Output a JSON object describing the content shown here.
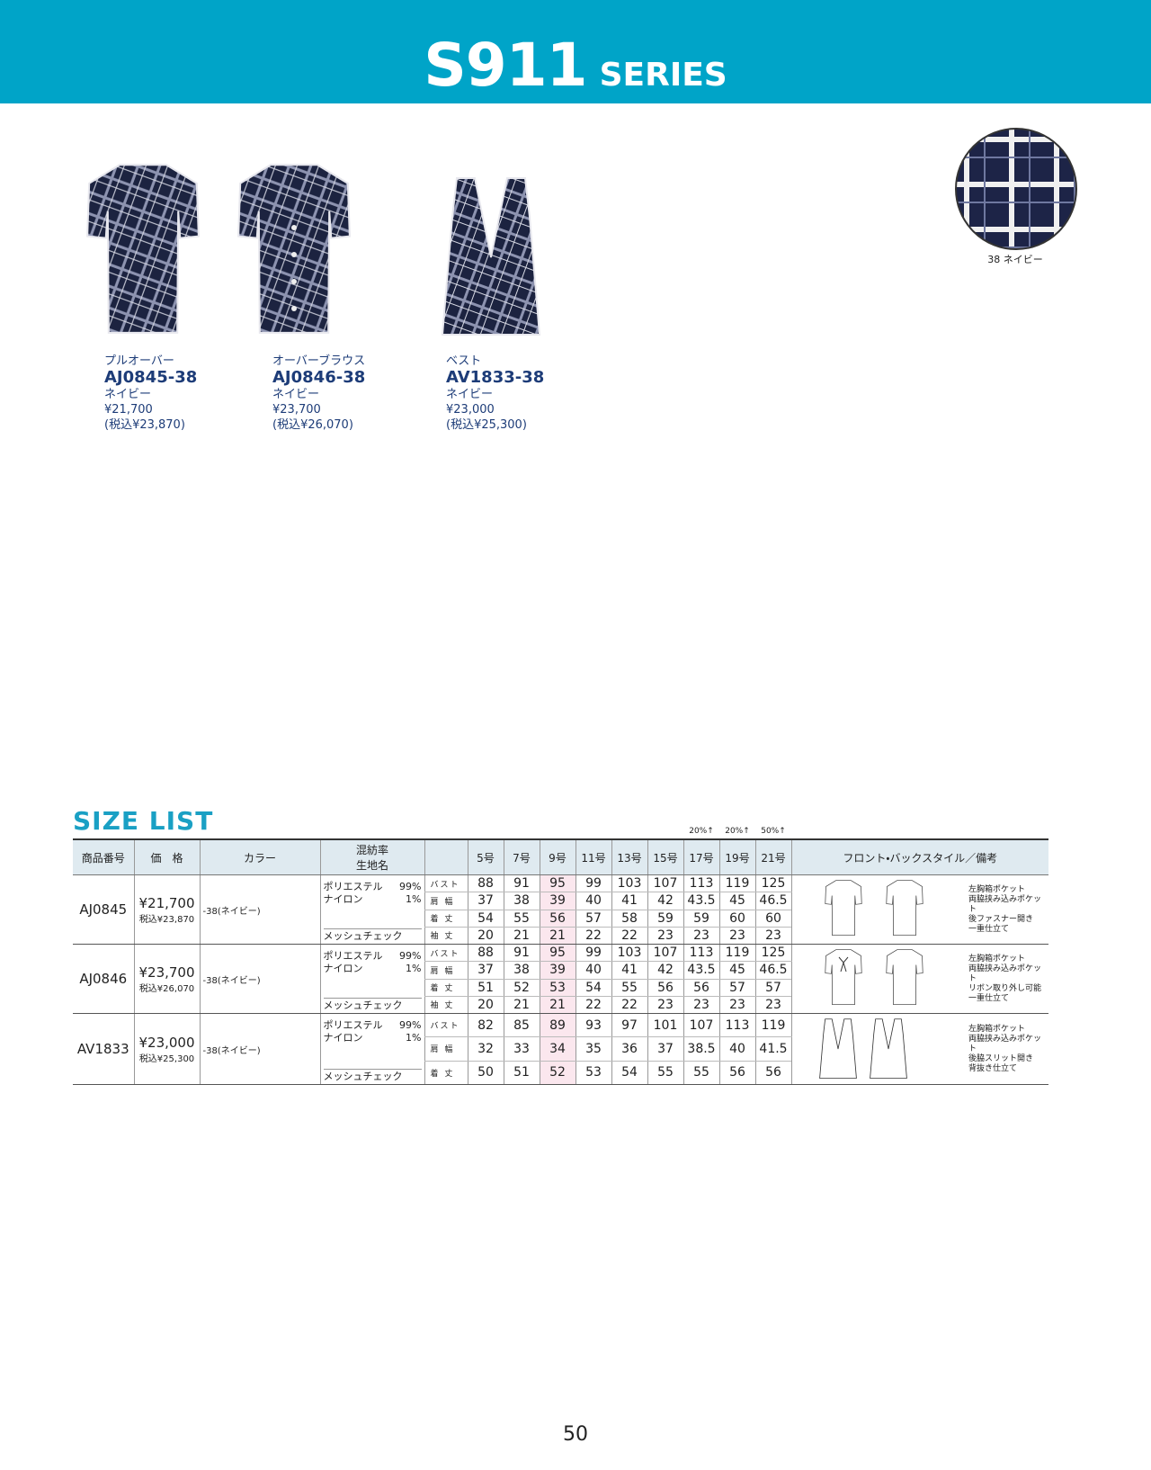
{
  "header": {
    "title": "S911",
    "subtitle": "SERIES"
  },
  "swatch": {
    "label": "38 ネイビー"
  },
  "products": [
    {
      "type": "プルオーバー",
      "code": "AJ0845-38",
      "color": "ネイビー",
      "price": "¥21,700",
      "price_tax": "(税込¥23,870)"
    },
    {
      "type": "オーバーブラウス",
      "code": "AJ0846-38",
      "color": "ネイビー",
      "price": "¥23,700",
      "price_tax": "(税込¥26,070)"
    },
    {
      "type": "ベスト",
      "code": "AV1833-38",
      "color": "ネイビー",
      "price": "¥23,000",
      "price_tax": "(税込¥25,300)"
    }
  ],
  "size_list": {
    "title": "SIZE LIST",
    "increase_notes": [
      "20%↑",
      "20%↑",
      "50%↑"
    ],
    "headers": {
      "code": "商品番号",
      "price": "価　格",
      "color": "カラー",
      "fabric": [
        "混紡率",
        "生地名"
      ],
      "style": "フロント・バックスタイル／備考"
    },
    "sizes": [
      "5号",
      "7号",
      "9号",
      "11号",
      "13号",
      "15号",
      "17号",
      "19号",
      "21号"
    ],
    "items": [
      {
        "code": "AJ0845",
        "price": "¥21,700",
        "price_tax": "税込¥23,870",
        "color": "-38(ネイビー)",
        "composition": [
          [
            "ポリエステル",
            "99%"
          ],
          [
            "ナイロン",
            "1%"
          ]
        ],
        "fabric": "メッシュチェック",
        "measures": [
          {
            "label": "バスト",
            "values": [
              88,
              91,
              95,
              99,
              103,
              107,
              113,
              119,
              125
            ]
          },
          {
            "label": "肩 幅",
            "values": [
              37,
              38,
              39,
              40,
              41,
              42,
              43.5,
              45,
              46.5
            ]
          },
          {
            "label": "着 丈",
            "values": [
              54,
              55,
              56,
              57,
              58,
              59,
              59,
              60,
              60
            ]
          },
          {
            "label": "袖 丈",
            "values": [
              20,
              21,
              21,
              22,
              22,
              23,
              23,
              23,
              23
            ]
          }
        ],
        "notes": [
          "左胸箱ポケット",
          "両脇挟み込みポケット",
          "後ファスナー開き",
          "一重仕立て"
        ]
      },
      {
        "code": "AJ0846",
        "price": "¥23,700",
        "price_tax": "税込¥26,070",
        "color": "-38(ネイビー)",
        "composition": [
          [
            "ポリエステル",
            "99%"
          ],
          [
            "ナイロン",
            "1%"
          ]
        ],
        "fabric": "メッシュチェック",
        "measures": [
          {
            "label": "バスト",
            "values": [
              88,
              91,
              95,
              99,
              103,
              107,
              113,
              119,
              125
            ]
          },
          {
            "label": "肩 幅",
            "values": [
              37,
              38,
              39,
              40,
              41,
              42,
              43.5,
              45,
              46.5
            ]
          },
          {
            "label": "着 丈",
            "values": [
              51,
              52,
              53,
              54,
              55,
              56,
              56,
              57,
              57
            ]
          },
          {
            "label": "袖 丈",
            "values": [
              20,
              21,
              21,
              22,
              22,
              23,
              23,
              23,
              23
            ]
          }
        ],
        "notes": [
          "左胸箱ポケット",
          "両脇挟み込みポケット",
          "リボン取り外し可能",
          "一重仕立て"
        ]
      },
      {
        "code": "AV1833",
        "price": "¥23,000",
        "price_tax": "税込¥25,300",
        "color": "-38(ネイビー)",
        "composition": [
          [
            "ポリエステル",
            "99%"
          ],
          [
            "ナイロン",
            "1%"
          ]
        ],
        "fabric": "メッシュチェック",
        "measures": [
          {
            "label": "バスト",
            "values": [
              82,
              85,
              89,
              93,
              97,
              101,
              107,
              113,
              119
            ]
          },
          {
            "label": "肩 幅",
            "values": [
              32,
              33,
              34,
              35,
              36,
              37,
              38.5,
              40,
              41.5
            ]
          },
          {
            "label": "着 丈",
            "values": [
              50,
              51,
              52,
              53,
              54,
              55,
              55,
              56,
              56
            ]
          }
        ],
        "notes": [
          "左胸箱ポケット",
          "両脇挟み込みポケット",
          "後脇スリット開き",
          "背抜き仕立て"
        ]
      }
    ]
  },
  "page_number": "50"
}
